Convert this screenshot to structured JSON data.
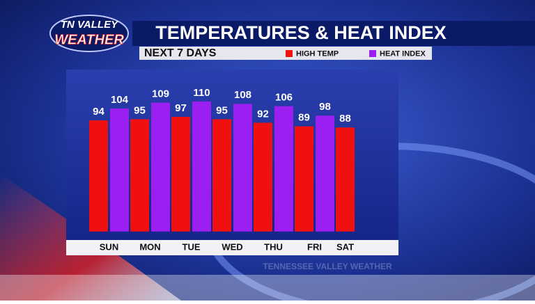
{
  "logo": {
    "line1": "TN VALLEY",
    "line2": "WEATHER"
  },
  "subtitle_bar": "NEXT 7 DAYS",
  "footer": "TENNESSEE VALLEY WEATHER",
  "chart_data": {
    "type": "bar",
    "title": "TEMPERATURES & HEAT INDEX",
    "categories": [
      "SUN",
      "MON",
      "TUE",
      "WED",
      "THU",
      "FRI",
      "SAT"
    ],
    "series": [
      {
        "name": "HIGH TEMP",
        "color": "#f01010",
        "values": [
          94,
          95,
          97,
          95,
          92,
          89,
          88
        ]
      },
      {
        "name": "HEAT INDEX",
        "color": "#9a1ff0",
        "values": [
          104,
          109,
          110,
          108,
          106,
          98,
          null
        ]
      }
    ],
    "ylim": [
      -6,
      137
    ],
    "grid": false,
    "legend": "top"
  }
}
